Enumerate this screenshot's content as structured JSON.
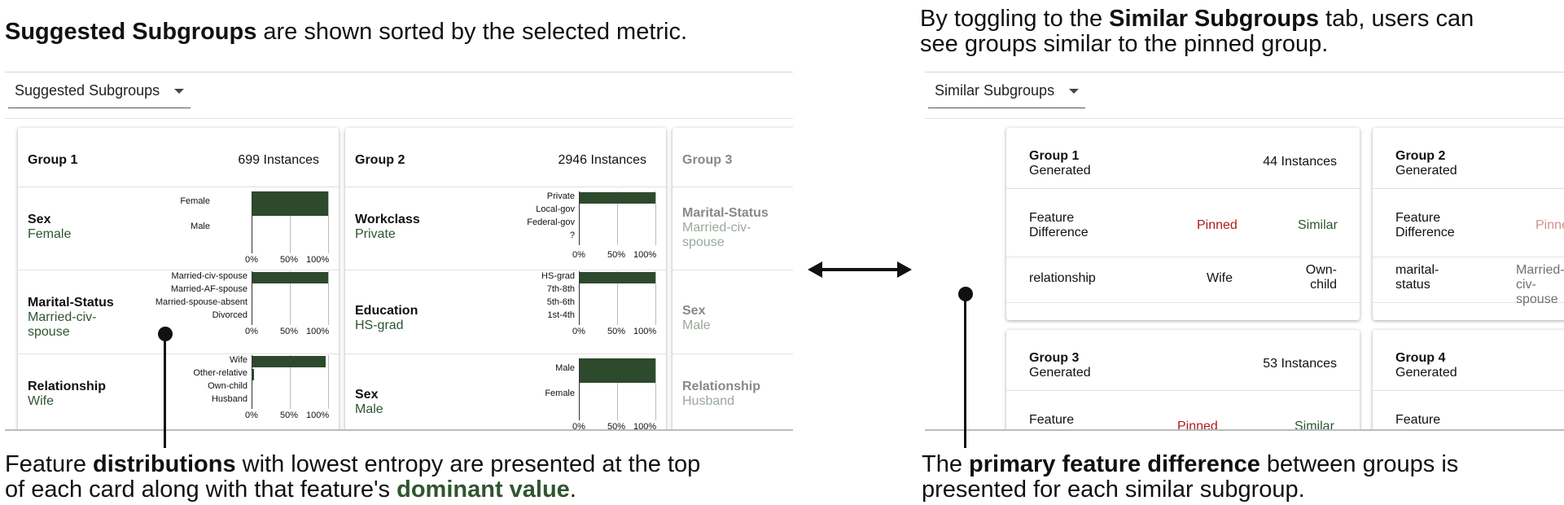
{
  "captions": {
    "top_left": {
      "bold": "Suggested Subgroups",
      "rest": " are shown sorted by the selected metric."
    },
    "top_right": {
      "pre": "By toggling to the ",
      "bold": "Similar Subgroups",
      "post": " tab, users can",
      "line2": "see groups similar to the pinned group."
    },
    "bottom_left": {
      "pre": "Feature ",
      "bold": "distributions",
      "post": " with lowest entropy are presented at the top",
      "line2_pre": "of each card along with that feature's ",
      "line2_bold": "dominant value",
      "line2_post": "."
    },
    "bottom_right": {
      "pre": "The ",
      "bold": "primary feature difference",
      "post": " between groups is",
      "line2": "presented for each similar subgroup."
    }
  },
  "left_panel": {
    "dropdown_label": "Suggested Subgroups",
    "cards": [
      {
        "title": "Group 1",
        "instances": "699 Instances",
        "features": [
          {
            "name": "Sex",
            "value": "Female",
            "categories": [
              "Female",
              "Male"
            ],
            "percents": [
              100,
              0
            ]
          },
          {
            "name": "Marital-Status",
            "value": "Married-civ-spouse",
            "categories": [
              "Married-civ-spouse",
              "Married-AF-spouse",
              "Married-spouse-absent",
              "Divorced"
            ],
            "percents": [
              100,
              0,
              0,
              0
            ]
          },
          {
            "name": "Relationship",
            "value": "Wife",
            "categories": [
              "Wife",
              "Other-relative",
              "Own-child",
              "Husband"
            ],
            "percents": [
              97,
              2,
              0.5,
              0.5
            ]
          }
        ]
      },
      {
        "title": "Group 2",
        "instances": "2946 Instances",
        "features": [
          {
            "name": "Workclass",
            "value": "Private",
            "categories": [
              "Private",
              "Local-gov",
              "Federal-gov",
              "?"
            ],
            "percents": [
              100,
              0,
              0,
              0
            ]
          },
          {
            "name": "Education",
            "value": "HS-grad",
            "categories": [
              "HS-grad",
              "7th-8th",
              "5th-6th",
              "1st-4th"
            ],
            "percents": [
              100,
              0,
              0,
              0
            ]
          },
          {
            "name": "Sex",
            "value": "Male",
            "categories": [
              "Male",
              "Female"
            ],
            "percents": [
              100,
              0
            ]
          }
        ]
      },
      {
        "title": "Group 3",
        "instances": "",
        "features": [
          {
            "name": "Marital-Status",
            "value": "Married-civ-spouse"
          },
          {
            "name": "Sex",
            "value": "Male"
          },
          {
            "name": "Relationship",
            "value": "Husband"
          }
        ]
      }
    ],
    "axis_ticks": [
      "0%",
      "50%",
      "100%"
    ]
  },
  "right_panel": {
    "dropdown_label": "Similar Subgroups",
    "feature_difference_label": "Feature Difference",
    "pinned_label": "Pinned",
    "similar_label": "Similar",
    "cards": [
      {
        "title": "Group 1",
        "subtitle": "Generated",
        "instances": "44 Instances",
        "feature": "relationship",
        "pinned_value": "Wife",
        "similar_value": "Own-child"
      },
      {
        "title": "Group 2",
        "subtitle": "Generated",
        "instances": "",
        "feature": "marital-status",
        "pinned_value": "Married-civ-spouse",
        "similar_value": ""
      },
      {
        "title": "Group 3",
        "subtitle": "Generated",
        "instances": "53 Instances",
        "feature_label": "Feature"
      },
      {
        "title": "Group 4",
        "subtitle": "Generated",
        "instances": "",
        "feature_label": "Feature"
      }
    ]
  },
  "colors": {
    "bar": "#2d4a2c",
    "dominant_value": "#2f5530",
    "pinned": "#b01a1a"
  },
  "icons": {
    "arrow": "double-headed-arrow"
  }
}
